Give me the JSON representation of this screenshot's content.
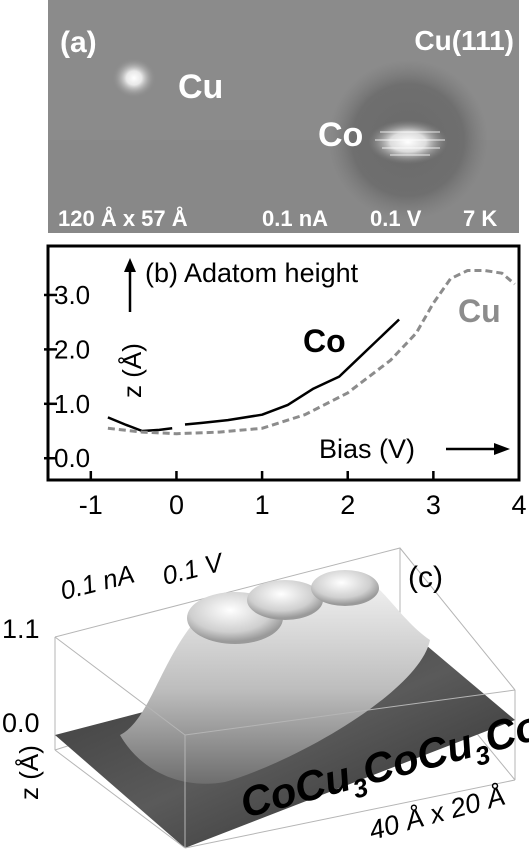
{
  "panel_a": {
    "label": "(a)",
    "surface": "Cu(111)",
    "atom_cu": "Cu",
    "atom_co": "Co",
    "scan_size": "120 Å x 57 Å",
    "current": "0.1 nA",
    "voltage": "0.1 V",
    "temperature": "7 K"
  },
  "panel_c": {
    "label": "(c)",
    "current": "0.1 nA",
    "voltage": "0.1 V",
    "z_tick_top": "1.1",
    "z_tick_bottom": "0.0",
    "z_axis_label": "z (Å)",
    "chain_parts": [
      "Co",
      "Cu",
      "3",
      "Co",
      "Cu",
      "3",
      "Co"
    ],
    "size": "40 Å x 20 Å"
  },
  "chart_data": {
    "type": "line",
    "title": "(b) Adatom height",
    "xlabel": "Bias (V)",
    "ylabel": "z (Å)",
    "xlim": [
      -1.5,
      4.0
    ],
    "ylim": [
      -0.4,
      3.9
    ],
    "x_ticks": [
      -1,
      0,
      1,
      2,
      3,
      4
    ],
    "y_ticks": [
      0.0,
      1.0,
      2.0,
      3.0
    ],
    "x_tick_labels": [
      "-1",
      "0",
      "1",
      "2",
      "3",
      "4"
    ],
    "y_tick_labels": [
      "0.0",
      "1.0",
      "2.0",
      "3.0"
    ],
    "grid": false,
    "series": [
      {
        "name": "Co",
        "color": "#000000",
        "style": "solid",
        "segments": [
          [
            [
              -0.8,
              0.75
            ],
            [
              -0.6,
              0.62
            ],
            [
              -0.4,
              0.5
            ],
            [
              -0.2,
              0.52
            ],
            [
              -0.05,
              0.55
            ]
          ],
          [
            [
              0.1,
              0.62
            ],
            [
              0.3,
              0.65
            ],
            [
              0.6,
              0.7
            ],
            [
              1.0,
              0.8
            ],
            [
              1.3,
              0.98
            ],
            [
              1.6,
              1.28
            ],
            [
              1.9,
              1.5
            ],
            [
              2.1,
              1.8
            ],
            [
              2.3,
              2.1
            ],
            [
              2.6,
              2.55
            ]
          ]
        ]
      },
      {
        "name": "Cu",
        "color": "#8c8c8c",
        "style": "dashed",
        "segments": [
          [
            [
              -0.8,
              0.55
            ],
            [
              -0.4,
              0.48
            ],
            [
              0.0,
              0.45
            ],
            [
              0.5,
              0.48
            ],
            [
              1.0,
              0.55
            ],
            [
              1.5,
              0.8
            ],
            [
              2.0,
              1.2
            ],
            [
              2.5,
              1.8
            ],
            [
              2.8,
              2.3
            ],
            [
              3.0,
              2.85
            ],
            [
              3.2,
              3.3
            ],
            [
              3.4,
              3.45
            ],
            [
              3.6,
              3.45
            ],
            [
              3.8,
              3.4
            ],
            [
              3.95,
              3.2
            ]
          ]
        ]
      }
    ]
  }
}
